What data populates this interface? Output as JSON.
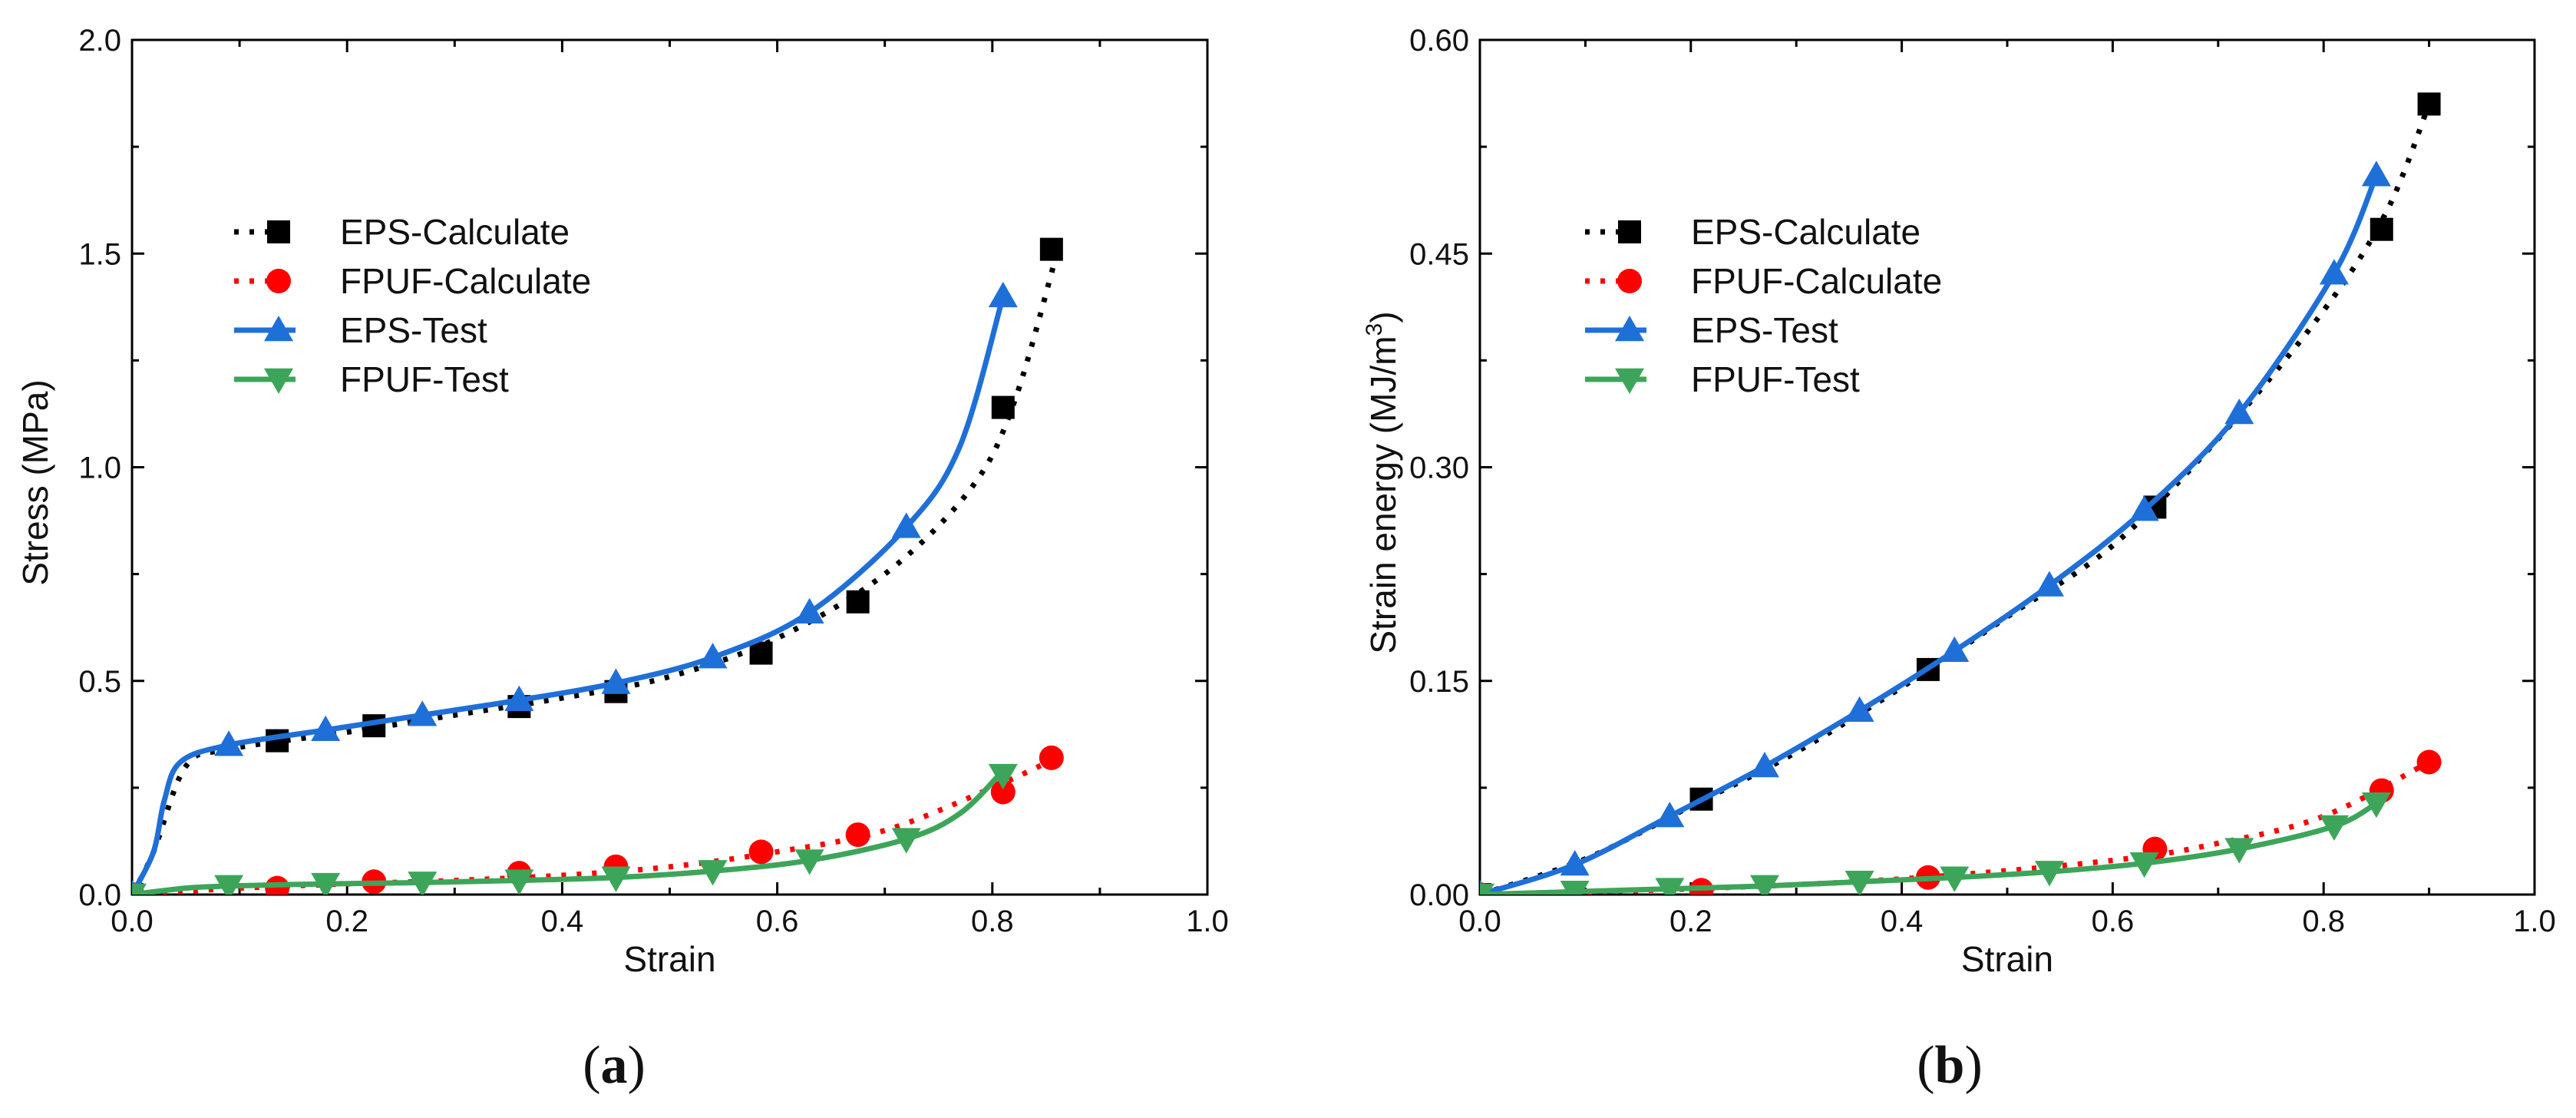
{
  "chart_data": [
    {
      "type": "line",
      "panel_label": "(a)",
      "xlabel": "Strain",
      "ylabel": "Stress (MPa)",
      "xlim": [
        0.0,
        1.0
      ],
      "ylim": [
        0.0,
        2.0
      ],
      "x_ticks": [
        "0.0",
        "0.2",
        "0.4",
        "0.6",
        "0.8",
        "1.0"
      ],
      "y_ticks": [
        "0.0",
        "0.5",
        "1.0",
        "1.5",
        "2.0"
      ],
      "legend_position": "upper-left",
      "series": [
        {
          "name": "EPS-Calculate",
          "style": "dotted-line-square-markers",
          "color": "#000000",
          "curve": [
            [
              0.0,
              0.0
            ],
            [
              0.02,
              0.1
            ],
            [
              0.05,
              0.3
            ],
            [
              0.09,
              0.34
            ],
            [
              0.2,
              0.38
            ],
            [
              0.3,
              0.42
            ],
            [
              0.4,
              0.46
            ],
            [
              0.5,
              0.51
            ],
            [
              0.6,
              0.6
            ],
            [
              0.7,
              0.75
            ],
            [
              0.78,
              0.95
            ],
            [
              0.82,
              1.15
            ],
            [
              0.86,
              1.5
            ]
          ],
          "markers": [
            [
              0.0,
              0.0
            ],
            [
              0.135,
              0.36
            ],
            [
              0.225,
              0.395
            ],
            [
              0.36,
              0.44
            ],
            [
              0.45,
              0.475
            ],
            [
              0.585,
              0.565
            ],
            [
              0.675,
              0.685
            ],
            [
              0.81,
              1.14
            ],
            [
              0.855,
              1.51
            ]
          ]
        },
        {
          "name": "FPUF-Calculate",
          "style": "dotted-line-circle-markers",
          "color": "#ff0000",
          "curve": [
            [
              0.0,
              0.0
            ],
            [
              0.1,
              0.015
            ],
            [
              0.2,
              0.025
            ],
            [
              0.3,
              0.033
            ],
            [
              0.4,
              0.045
            ],
            [
              0.5,
              0.065
            ],
            [
              0.6,
              0.1
            ],
            [
              0.7,
              0.15
            ],
            [
              0.8,
              0.25
            ],
            [
              0.86,
              0.32
            ]
          ],
          "markers": [
            [
              0.0,
              0.0
            ],
            [
              0.135,
              0.015
            ],
            [
              0.225,
              0.03
            ],
            [
              0.36,
              0.05
            ],
            [
              0.45,
              0.065
            ],
            [
              0.585,
              0.1
            ],
            [
              0.675,
              0.14
            ],
            [
              0.81,
              0.24
            ],
            [
              0.855,
              0.32
            ]
          ]
        },
        {
          "name": "EPS-Test",
          "style": "solid-line-up-triangle-markers",
          "color": "#1f6fd8",
          "curve": [
            [
              0.0,
              0.0
            ],
            [
              0.02,
              0.1
            ],
            [
              0.03,
              0.22
            ],
            [
              0.045,
              0.31
            ],
            [
              0.09,
              0.35
            ],
            [
              0.18,
              0.385
            ],
            [
              0.27,
              0.42
            ],
            [
              0.36,
              0.455
            ],
            [
              0.45,
              0.495
            ],
            [
              0.54,
              0.555
            ],
            [
              0.63,
              0.66
            ],
            [
              0.72,
              0.86
            ],
            [
              0.77,
              1.05
            ],
            [
              0.81,
              1.4
            ]
          ],
          "markers": [
            [
              0.0,
              0.0
            ],
            [
              0.09,
              0.35
            ],
            [
              0.18,
              0.385
            ],
            [
              0.27,
              0.42
            ],
            [
              0.36,
              0.455
            ],
            [
              0.45,
              0.495
            ],
            [
              0.54,
              0.555
            ],
            [
              0.63,
              0.66
            ],
            [
              0.72,
              0.86
            ],
            [
              0.81,
              1.4
            ]
          ]
        },
        {
          "name": "FPUF-Test",
          "style": "solid-line-down-triangle-markers",
          "color": "#3da55a",
          "curve": [
            [
              0.0,
              0.0
            ],
            [
              0.05,
              0.015
            ],
            [
              0.09,
              0.02
            ],
            [
              0.18,
              0.025
            ],
            [
              0.27,
              0.028
            ],
            [
              0.36,
              0.033
            ],
            [
              0.45,
              0.04
            ],
            [
              0.54,
              0.055
            ],
            [
              0.63,
              0.08
            ],
            [
              0.72,
              0.13
            ],
            [
              0.77,
              0.19
            ],
            [
              0.81,
              0.29
            ]
          ],
          "markers": [
            [
              0.0,
              0.0
            ],
            [
              0.09,
              0.02
            ],
            [
              0.18,
              0.025
            ],
            [
              0.27,
              0.028
            ],
            [
              0.36,
              0.033
            ],
            [
              0.45,
              0.04
            ],
            [
              0.54,
              0.055
            ],
            [
              0.63,
              0.08
            ],
            [
              0.72,
              0.13
            ],
            [
              0.81,
              0.28
            ]
          ]
        }
      ]
    },
    {
      "type": "line",
      "panel_label": "(b)",
      "xlabel": "Strain",
      "ylabel": "Strain energy (MJ/m",
      "ylabel_superscript": "3",
      "ylabel_suffix": ")",
      "xlim": [
        0.0,
        1.0
      ],
      "ylim": [
        0.0,
        0.6
      ],
      "x_ticks": [
        "0.0",
        "0.2",
        "0.4",
        "0.6",
        "0.8",
        "1.0"
      ],
      "y_ticks": [
        "0.00",
        "0.15",
        "0.30",
        "0.45",
        "0.60"
      ],
      "legend_position": "upper-left",
      "series": [
        {
          "name": "EPS-Calculate",
          "style": "dotted-line-square-markers",
          "color": "#000000",
          "curve": [
            [
              0.0,
              0.0
            ],
            [
              0.1,
              0.025
            ],
            [
              0.2,
              0.062
            ],
            [
              0.3,
              0.1
            ],
            [
              0.42,
              0.155
            ],
            [
              0.5,
              0.195
            ],
            [
              0.6,
              0.245
            ],
            [
              0.7,
              0.32
            ],
            [
              0.8,
              0.41
            ],
            [
              0.86,
              0.48
            ],
            [
              0.9,
              0.555
            ]
          ],
          "markers": [
            [
              0.0,
              0.0
            ],
            [
              0.21,
              0.067
            ],
            [
              0.425,
              0.158
            ],
            [
              0.64,
              0.272
            ],
            [
              0.855,
              0.467
            ],
            [
              0.9,
              0.555
            ]
          ]
        },
        {
          "name": "FPUF-Calculate",
          "style": "dotted-line-circle-markers",
          "color": "#ff0000",
          "curve": [
            [
              0.0,
              0.0
            ],
            [
              0.2,
              0.004
            ],
            [
              0.4,
              0.011
            ],
            [
              0.6,
              0.024
            ],
            [
              0.7,
              0.036
            ],
            [
              0.8,
              0.055
            ],
            [
              0.9,
              0.093
            ]
          ],
          "markers": [
            [
              0.0,
              0.0
            ],
            [
              0.21,
              0.003
            ],
            [
              0.425,
              0.012
            ],
            [
              0.64,
              0.032
            ],
            [
              0.855,
              0.073
            ],
            [
              0.9,
              0.093
            ]
          ]
        },
        {
          "name": "EPS-Test",
          "style": "solid-line-up-triangle-markers",
          "color": "#1f6fd8",
          "curve": [
            [
              0.0,
              0.0
            ],
            [
              0.09,
              0.021
            ],
            [
              0.18,
              0.055
            ],
            [
              0.27,
              0.09
            ],
            [
              0.36,
              0.129
            ],
            [
              0.45,
              0.171
            ],
            [
              0.54,
              0.217
            ],
            [
              0.63,
              0.27
            ],
            [
              0.72,
              0.338
            ],
            [
              0.81,
              0.436
            ],
            [
              0.85,
              0.505
            ]
          ],
          "markers": [
            [
              0.0,
              0.0
            ],
            [
              0.09,
              0.021
            ],
            [
              0.18,
              0.055
            ],
            [
              0.27,
              0.09
            ],
            [
              0.36,
              0.129
            ],
            [
              0.45,
              0.171
            ],
            [
              0.54,
              0.217
            ],
            [
              0.63,
              0.27
            ],
            [
              0.72,
              0.338
            ],
            [
              0.81,
              0.436
            ],
            [
              0.85,
              0.505
            ]
          ]
        },
        {
          "name": "FPUF-Test",
          "style": "solid-line-down-triangle-markers",
          "color": "#3da55a",
          "curve": [
            [
              0.0,
              0.0
            ],
            [
              0.09,
              0.002
            ],
            [
              0.18,
              0.004
            ],
            [
              0.27,
              0.006
            ],
            [
              0.36,
              0.009
            ],
            [
              0.45,
              0.012
            ],
            [
              0.54,
              0.016
            ],
            [
              0.63,
              0.022
            ],
            [
              0.72,
              0.032
            ],
            [
              0.81,
              0.048
            ],
            [
              0.85,
              0.064
            ]
          ],
          "markers": [
            [
              0.0,
              0.0
            ],
            [
              0.09,
              0.002
            ],
            [
              0.18,
              0.004
            ],
            [
              0.27,
              0.006
            ],
            [
              0.36,
              0.009
            ],
            [
              0.45,
              0.012
            ],
            [
              0.54,
              0.016
            ],
            [
              0.63,
              0.022
            ],
            [
              0.72,
              0.032
            ],
            [
              0.81,
              0.048
            ],
            [
              0.85,
              0.064
            ]
          ]
        }
      ]
    }
  ]
}
